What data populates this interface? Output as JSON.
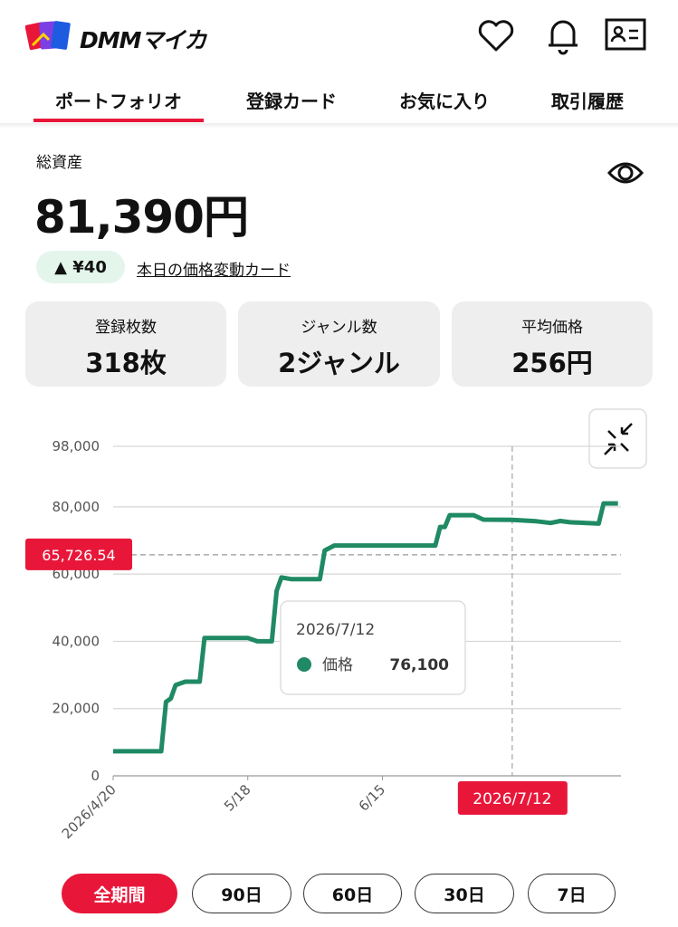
{
  "header": {
    "logo": "DMMマイカ"
  },
  "tabs": [
    "ポートフォリオ",
    "登録カード",
    "お気に入り",
    "取引履歴"
  ],
  "summary": {
    "label": "総資産",
    "total": "81,390円",
    "change": "▲ ¥40",
    "link": "本日の価格変動カード"
  },
  "stats": [
    {
      "label": "登録枚数",
      "value": "318枚"
    },
    {
      "label": "ジャンル数",
      "value": "2ジャンル"
    },
    {
      "label": "平均価格",
      "value": "256円"
    }
  ],
  "chart_data": {
    "type": "line",
    "x": [
      "2026-04-20",
      "2026-04-30",
      "2026-05-01",
      "2026-05-02",
      "2026-05-03",
      "2026-05-05",
      "2026-05-08",
      "2026-05-09",
      "2026-05-18",
      "2026-05-20",
      "2026-05-23",
      "2026-05-24",
      "2026-05-25",
      "2026-05-27",
      "2026-06-02",
      "2026-06-03",
      "2026-06-05",
      "2026-06-26",
      "2026-06-27",
      "2026-06-28",
      "2026-06-29",
      "2026-07-04",
      "2026-07-06",
      "2026-07-12",
      "2026-07-17",
      "2026-07-20",
      "2026-07-22",
      "2026-07-24",
      "2026-07-30",
      "2026-07-31",
      "2026-08-03"
    ],
    "series": [
      {
        "name": "価格",
        "color": "#1f8a63",
        "values": [
          7300,
          7300,
          22000,
          23000,
          27000,
          28000,
          28000,
          41000,
          41000,
          40000,
          40000,
          55000,
          59000,
          58500,
          58500,
          67000,
          68500,
          68500,
          74000,
          74000,
          77500,
          77500,
          76200,
          76100,
          75700,
          75200,
          75800,
          75400,
          75000,
          81000,
          81000
        ]
      }
    ],
    "xlim": [
      "2026-04-20",
      "2026-08-04"
    ],
    "ylim": [
      0,
      98000
    ],
    "xticks": [
      {
        "value": "2026-04-20",
        "label": "2026/4/20"
      },
      {
        "value": "2026-05-18",
        "label": "5/18"
      },
      {
        "value": "2026-06-15",
        "label": "6/15"
      }
    ],
    "yticks": [
      0,
      {
        "value": 20000,
        "label": "20,000"
      },
      {
        "value": 40000,
        "label": "40,000"
      },
      {
        "value": 60000,
        "label": "60,000"
      },
      {
        "value": 80000,
        "label": "80,000"
      },
      {
        "value": 98000,
        "label": "98,000"
      }
    ],
    "grid": true,
    "reference": {
      "value": 65726.54,
      "label": "65,726.54"
    },
    "crosshair": {
      "x": "2026-07-12",
      "label": "2026/7/12"
    },
    "tooltip_value": {
      "value": 76100,
      "label": "76,100"
    }
  },
  "ranges": [
    "全期間",
    "90日",
    "60日",
    "30日",
    "7日"
  ]
}
